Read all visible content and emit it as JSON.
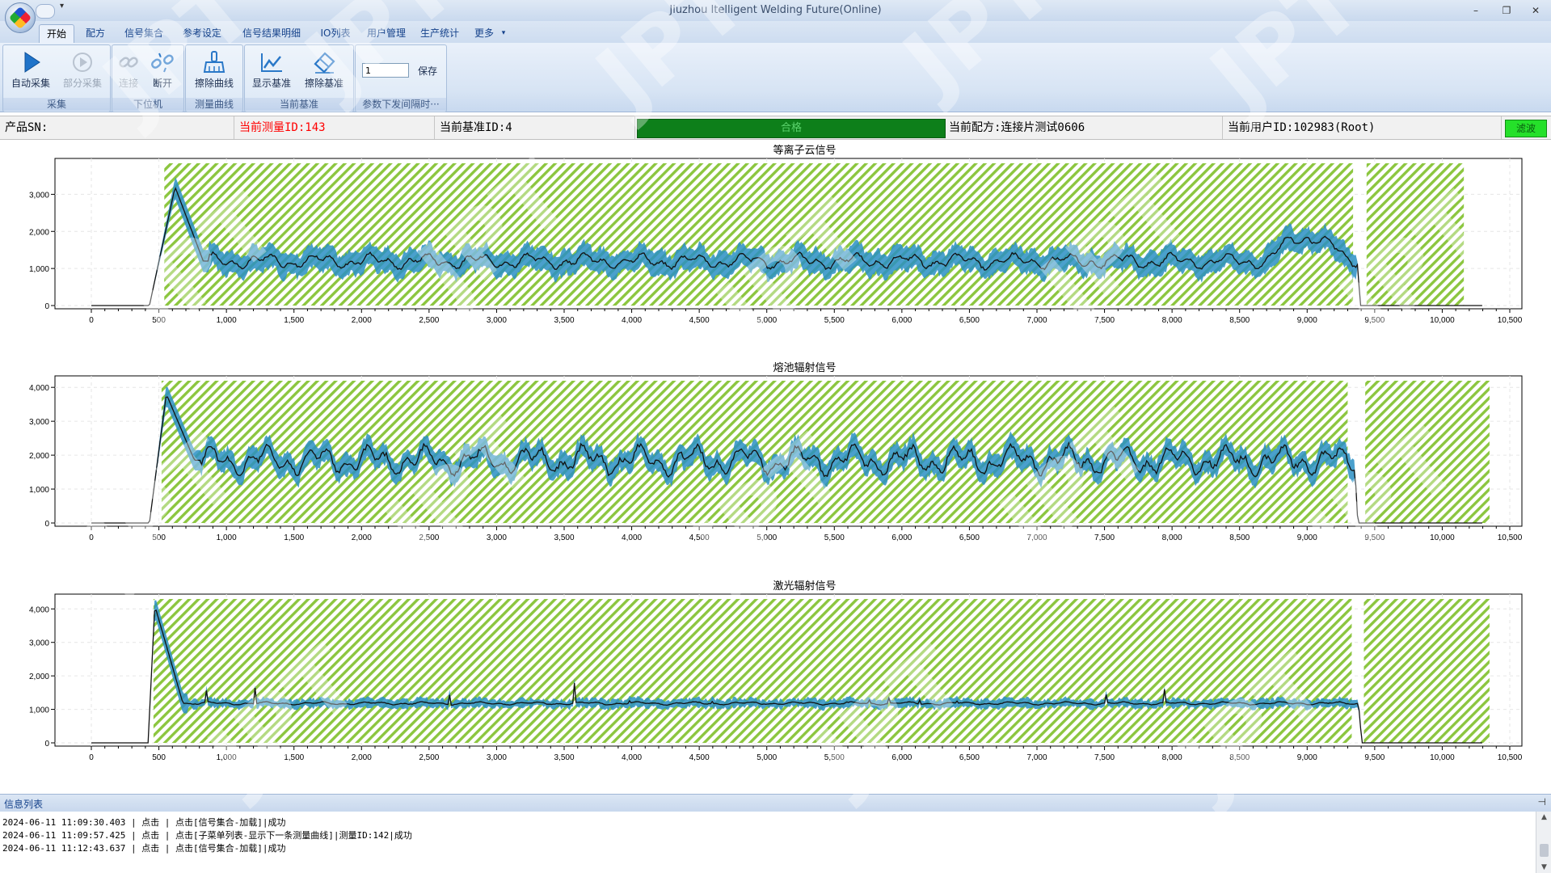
{
  "window": {
    "title": "Jiuzhou Itelligent Welding Future(Online)",
    "minimize": "–",
    "restore": "❐",
    "close": "✕",
    "qat_arrow": "▾"
  },
  "menu": {
    "tabs": [
      "开始",
      "配方",
      "信号集合",
      "参考设定",
      "信号结果明细",
      "IO列表",
      "用户管理",
      "生产统计",
      "更多"
    ],
    "active": "开始",
    "more_arrow": "▾"
  },
  "ribbon": {
    "collect": {
      "label": "采集",
      "auto": "自动采集",
      "partial": "部分采集"
    },
    "plc": {
      "label": "下位机",
      "connect": "连接",
      "disconnect": "断开"
    },
    "measure_curve": {
      "label": "测量曲线",
      "erase": "擦除曲线"
    },
    "baseline": {
      "label": "当前基准",
      "show": "显示基准",
      "erase": "擦除基准"
    },
    "params": {
      "label": "参数下发间隔时···",
      "interval_value": "1",
      "save": "保存"
    }
  },
  "status": {
    "product_sn": "产品SN:",
    "measure_id": "当前测量ID:143",
    "baseline_id": "当前基准ID:4",
    "result": "合格",
    "recipe": "当前配方:连接片测试0606",
    "user": "当前用户ID:102983(Root)",
    "filter": "滤波",
    "colors": {
      "result_bg": "#0d7f1a",
      "result_text": "#5bd36d",
      "measure_text": "#ff0000",
      "filter_bg": "#25e02a"
    }
  },
  "charts": [
    {
      "title": "等离子云信号",
      "y_ticks": [
        "0",
        "1,000",
        "2,000",
        "3,000"
      ],
      "y_max": 3750,
      "x_ticks": [
        "0",
        "500",
        "1,000",
        "1,500",
        "2,000",
        "2,500",
        "3,000",
        "3,500",
        "4,000",
        "4,500",
        "5,000",
        "5,500",
        "6,000",
        "6,500",
        "7,000",
        "7,500",
        "8,000",
        "8,500",
        "9,000",
        "9,500",
        "10,000",
        "10,500"
      ],
      "x_max": 10500,
      "zones": [
        [
          540,
          9340
        ],
        [
          9440,
          10160
        ]
      ],
      "signal": {
        "base": 1200,
        "amp": 180,
        "peak": 3200,
        "rise_start": 430,
        "peak_at": 620,
        "end": 9370,
        "tail_end": 10300,
        "bump": [
          8700,
          9300,
          650
        ]
      }
    },
    {
      "title": "熔池辐射信号",
      "y_ticks": [
        "0",
        "1,000",
        "2,000",
        "3,000",
        "4,000"
      ],
      "y_max": 4100,
      "x_ticks": [
        "0",
        "500",
        "1,000",
        "1,500",
        "2,000",
        "2,500",
        "3,000",
        "3,500",
        "4,000",
        "4,500",
        "5,000",
        "5,500",
        "6,000",
        "6,500",
        "7,000",
        "7,500",
        "8,000",
        "8,500",
        "9,000",
        "9,500",
        "10,000",
        "10,500"
      ],
      "x_max": 10500,
      "zones": [
        [
          520,
          9300
        ],
        [
          9430,
          10350
        ]
      ],
      "signal": {
        "base": 1850,
        "amp": 380,
        "peak": 3800,
        "rise_start": 430,
        "peak_at": 555,
        "end": 9350,
        "tail_end": 10300,
        "bump": [
          0,
          0,
          0
        ]
      }
    },
    {
      "title": "激光辐射信号",
      "y_ticks": [
        "0",
        "1,000",
        "2,000",
        "3,000",
        "4,000"
      ],
      "y_max": 4200,
      "x_ticks": [
        "0",
        "500",
        "1,000",
        "1,500",
        "2,000",
        "2,500",
        "3,000",
        "3,500",
        "4,000",
        "4,500",
        "5,000",
        "5,500",
        "6,000",
        "6,500",
        "7,000",
        "7,500",
        "8,000",
        "8,500",
        "9,000",
        "9,500",
        "10,000",
        "10,500"
      ],
      "x_max": 10500,
      "zones": [
        [
          460,
          9330
        ],
        [
          9420,
          10350
        ]
      ],
      "signal": {
        "base": 1180,
        "amp": 40,
        "peak": 4100,
        "rise_start": 420,
        "peak_at": 470,
        "end": 9380,
        "tail_end": 10300,
        "bump": [
          0,
          0,
          0
        ]
      }
    }
  ],
  "info": {
    "title": "信息列表",
    "pin": "⊣",
    "logs": [
      "2024-06-11 11:09:30.403 | 点击 | 点击[信号集合-加载]|成功",
      "2024-06-11 11:09:57.425 | 点击 | 点击[子菜单列表-显示下一条测量曲线]|测量ID:142|成功",
      "2024-06-11 11:12:43.637 | 点击 | 点击[信号集合-加载]|成功"
    ]
  },
  "watermark": "JPT"
}
